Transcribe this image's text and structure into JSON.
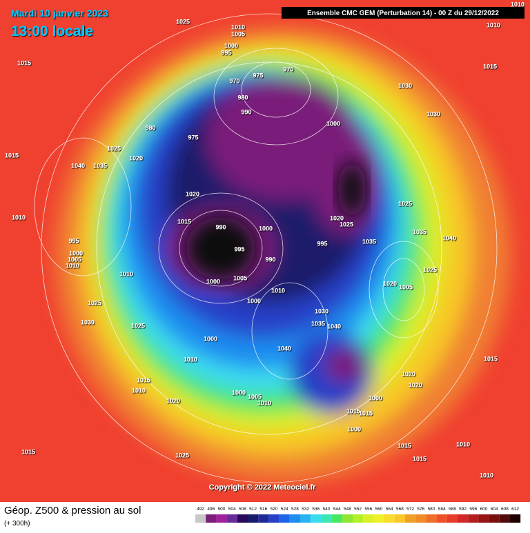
{
  "header": {
    "date": "Mardi 10 janvier 2023",
    "time": "13:00 locale",
    "model": "Ensemble CMC GEM  (Perturbation 14)  - 00 Z du 29/12/2022"
  },
  "isobar_labels": [
    "1025",
    "1010",
    "1005",
    "1000",
    "995",
    "1015",
    "1010",
    "1010",
    "1015",
    "970",
    "975",
    "970",
    "980",
    "990",
    "980",
    "975",
    "1030",
    "1030",
    "1000",
    "1025",
    "1020",
    "1040",
    "1035",
    "1015",
    "1010",
    "1020",
    "1015",
    "990",
    "1000",
    "995",
    "990",
    "1000",
    "1005",
    "1020",
    "1025",
    "995",
    "1025",
    "1035",
    "1035",
    "1040",
    "995",
    "1000",
    "1005",
    "1010",
    "1010",
    "1025",
    "1020",
    "1005",
    "1010",
    "1000",
    "1025",
    "1030",
    "1025",
    "1030",
    "1035",
    "1040",
    "1000",
    "1040",
    "1010",
    "1015",
    "1015",
    "1010",
    "1020",
    "1020",
    "1000",
    "1005",
    "1010",
    "1000",
    "1015",
    "1015",
    "1020",
    "1000",
    "1015",
    "1015",
    "1015",
    "1010",
    "1025",
    "1010"
  ],
  "copyright": "Copyright © 2022 Meteociel.fr",
  "footer": {
    "title": "Géop. Z500 & pression au sol",
    "lead": "(+ 300h)"
  },
  "scale": {
    "values": [
      492,
      496,
      500,
      504,
      508,
      512,
      516,
      520,
      524,
      528,
      532,
      536,
      540,
      544,
      548,
      552,
      556,
      560,
      564,
      568,
      572,
      576,
      580,
      584,
      588,
      592,
      596,
      600,
      604,
      608,
      612
    ],
    "colors": [
      "#c8c8c8",
      "#7a1e7a",
      "#a020a0",
      "#6a2a9a",
      "#2a0a5a",
      "#1a1a6a",
      "#1e2a9a",
      "#2840c8",
      "#1e64e6",
      "#1e8cf0",
      "#28b4f0",
      "#3cdcf0",
      "#3ce6b4",
      "#46e664",
      "#8ce632",
      "#b4f028",
      "#dcf028",
      "#f0f028",
      "#fadc28",
      "#fac828",
      "#f0a028",
      "#f08c28",
      "#f06e28",
      "#f05028",
      "#e63c28",
      "#d22828",
      "#b41e1e",
      "#961414",
      "#781010",
      "#500a0a",
      "#1e0000"
    ]
  }
}
